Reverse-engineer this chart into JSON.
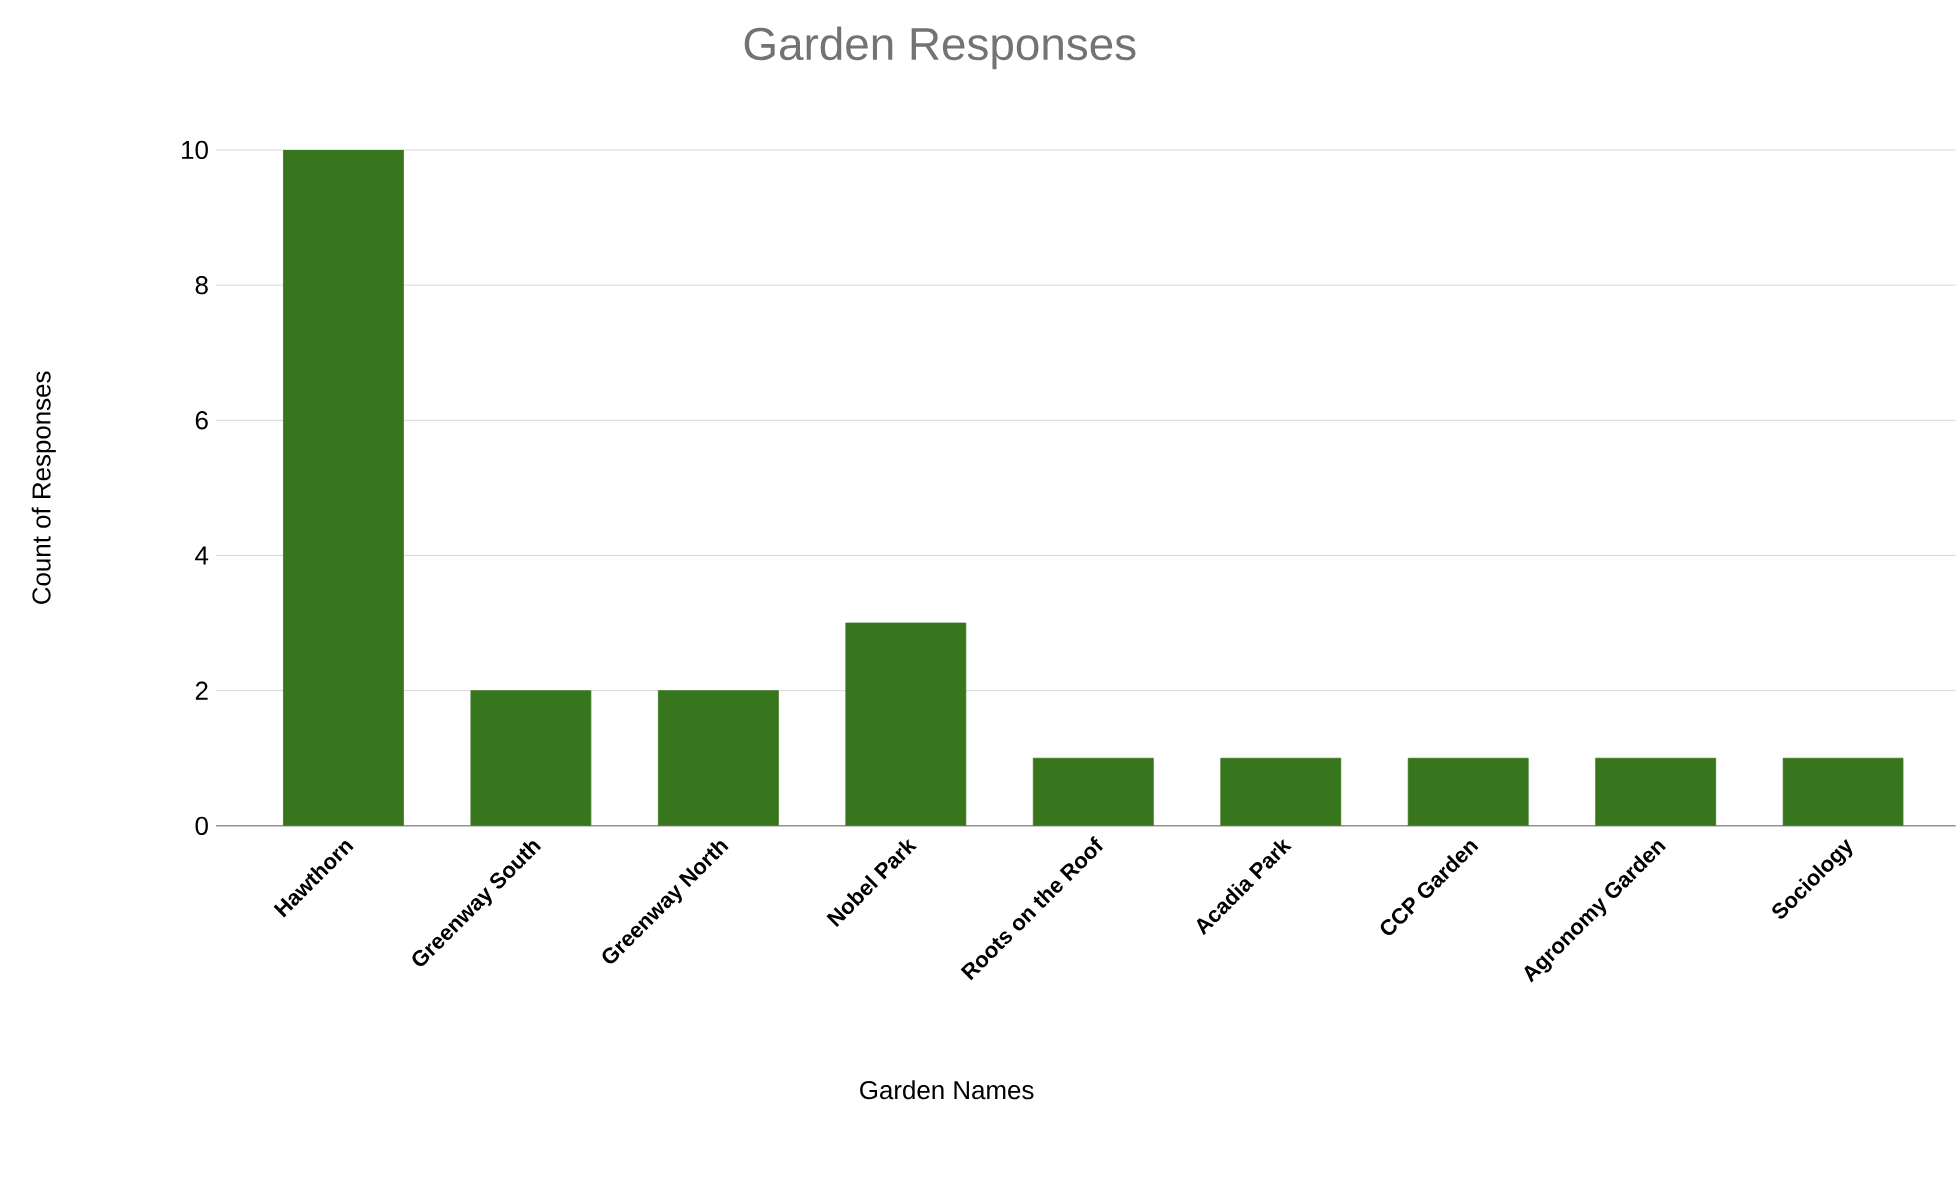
{
  "chart_data": {
    "type": "bar",
    "title": "Garden Responses",
    "xlabel": "Garden Names",
    "ylabel": "Count of Responses",
    "categories": [
      "Hawthorn",
      "Greenway South",
      "Greenway North",
      "Nobel Park",
      "Roots on the Roof",
      "Acadia Park",
      "CCP Garden",
      "Agronomy Garden",
      "Sociology"
    ],
    "values": [
      10,
      2,
      2,
      3,
      1,
      1,
      1,
      1,
      1
    ],
    "color": "#38761d",
    "ylim": [
      0,
      10
    ],
    "yticks": [
      0,
      2,
      4,
      6,
      8,
      10
    ],
    "grid": "y"
  }
}
